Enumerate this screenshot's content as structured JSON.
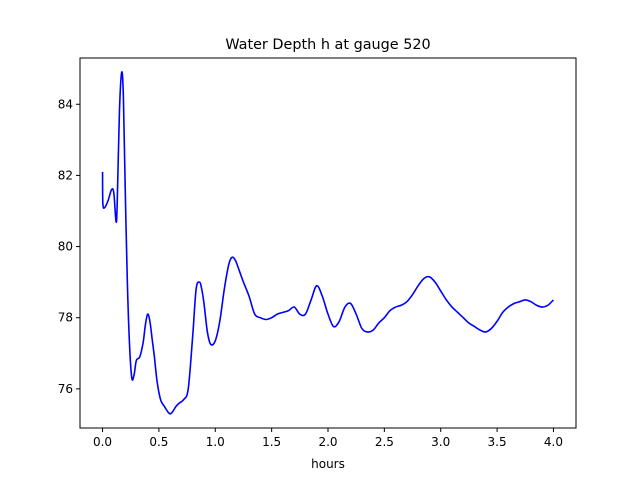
{
  "chart_data": {
    "type": "line",
    "title": "Water Depth h at gauge 520",
    "xlabel": "hours",
    "ylabel": "",
    "xlim": [
      -0.2,
      4.2
    ],
    "ylim": [
      74.9,
      85.3
    ],
    "x_ticks": [
      0.0,
      0.5,
      1.0,
      1.5,
      2.0,
      2.5,
      3.0,
      3.5,
      4.0
    ],
    "x_tick_labels": [
      "0.0",
      "0.5",
      "1.0",
      "1.5",
      "2.0",
      "2.5",
      "3.0",
      "3.5",
      "4.0"
    ],
    "y_ticks": [
      76,
      78,
      80,
      82,
      84
    ],
    "y_tick_labels": [
      "76",
      "78",
      "80",
      "82",
      "84"
    ],
    "grid": false,
    "legend": "none",
    "series": [
      {
        "color": "#0000ff",
        "x": [
          0.0,
          0.003,
          0.02,
          0.05,
          0.08,
          0.1,
          0.12,
          0.13,
          0.15,
          0.17,
          0.185,
          0.2,
          0.22,
          0.24,
          0.26,
          0.28,
          0.3,
          0.33,
          0.36,
          0.38,
          0.4,
          0.42,
          0.44,
          0.46,
          0.48,
          0.5,
          0.52,
          0.55,
          0.58,
          0.6,
          0.62,
          0.65,
          0.68,
          0.72,
          0.76,
          0.8,
          0.83,
          0.86,
          0.88,
          0.9,
          0.93,
          0.96,
          1.0,
          1.04,
          1.08,
          1.12,
          1.15,
          1.18,
          1.21,
          1.25,
          1.3,
          1.35,
          1.4,
          1.45,
          1.5,
          1.55,
          1.6,
          1.65,
          1.7,
          1.75,
          1.8,
          1.85,
          1.9,
          1.95,
          2.0,
          2.05,
          2.1,
          2.15,
          2.2,
          2.25,
          2.3,
          2.35,
          2.4,
          2.45,
          2.5,
          2.55,
          2.6,
          2.65,
          2.7,
          2.75,
          2.8,
          2.85,
          2.9,
          2.95,
          3.0,
          3.05,
          3.1,
          3.15,
          3.2,
          3.25,
          3.3,
          3.35,
          3.4,
          3.45,
          3.5,
          3.55,
          3.6,
          3.65,
          3.7,
          3.75,
          3.8,
          3.85,
          3.9,
          3.95,
          4.0
        ],
        "y": [
          82.1,
          81.2,
          81.1,
          81.3,
          81.6,
          81.5,
          80.7,
          81.2,
          83.8,
          84.9,
          84.2,
          81.8,
          79.0,
          77.2,
          76.3,
          76.4,
          76.8,
          76.9,
          77.3,
          77.8,
          78.1,
          77.9,
          77.4,
          76.9,
          76.3,
          75.9,
          75.65,
          75.5,
          75.35,
          75.3,
          75.35,
          75.5,
          75.6,
          75.7,
          76.0,
          77.5,
          78.8,
          79.0,
          78.8,
          78.4,
          77.6,
          77.25,
          77.35,
          77.9,
          78.8,
          79.5,
          79.7,
          79.6,
          79.35,
          79.0,
          78.6,
          78.1,
          78.0,
          77.95,
          78.0,
          78.1,
          78.15,
          78.2,
          78.3,
          78.1,
          78.1,
          78.5,
          78.9,
          78.6,
          78.1,
          77.75,
          77.9,
          78.3,
          78.4,
          78.1,
          77.7,
          77.6,
          77.65,
          77.85,
          78.0,
          78.2,
          78.3,
          78.35,
          78.45,
          78.65,
          78.9,
          79.1,
          79.15,
          79.0,
          78.75,
          78.5,
          78.3,
          78.15,
          78.0,
          77.85,
          77.75,
          77.65,
          77.6,
          77.7,
          77.9,
          78.15,
          78.3,
          78.4,
          78.45,
          78.5,
          78.45,
          78.35,
          78.3,
          78.35,
          78.5
        ]
      }
    ]
  }
}
